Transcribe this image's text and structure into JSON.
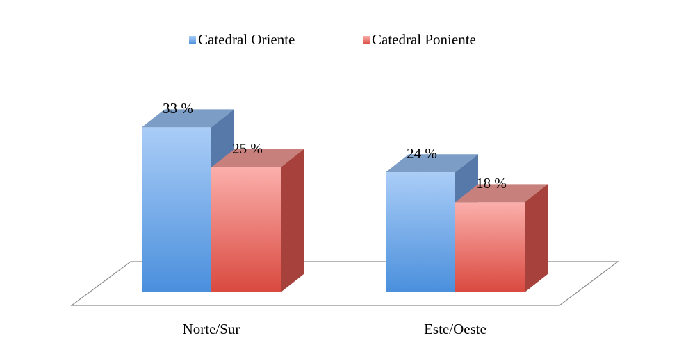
{
  "chart_data": {
    "type": "bar3d",
    "categories": [
      "Norte/Sur",
      "Este/Oeste"
    ],
    "series": [
      {
        "name": "Catedral Oriente",
        "color": "#4a8fdc",
        "values": [
          33,
          24
        ],
        "value_labels": [
          "33 %",
          "24 %"
        ]
      },
      {
        "name": "Catedral Poniente",
        "color": "#d9493f",
        "values": [
          25,
          18
        ],
        "value_labels": [
          "25 %",
          "18 %"
        ]
      }
    ],
    "legend": "top"
  }
}
